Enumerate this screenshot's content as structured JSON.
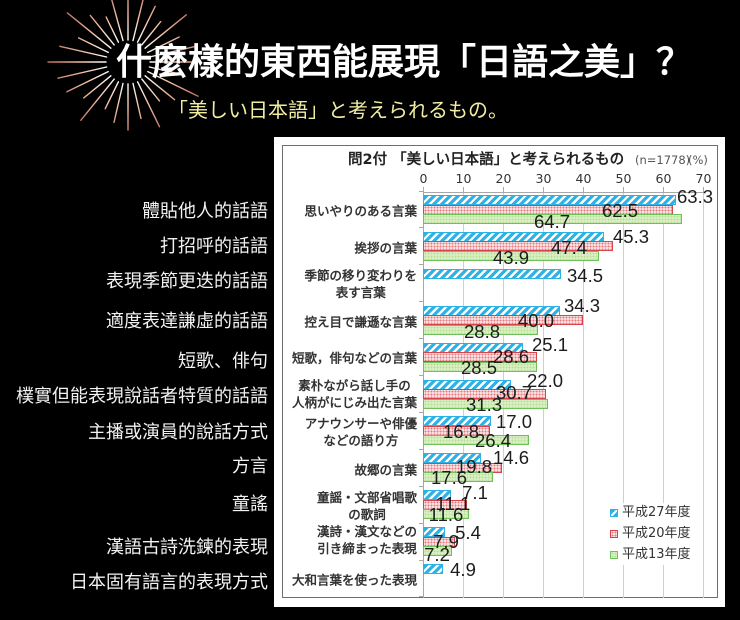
{
  "header": {
    "title": "什麼樣的東西能展現「日語之美」？",
    "subtitle": "「美しい日本語」と考えられるもの。"
  },
  "annotations": {
    "left_labels": [
      "體貼他人的話語",
      "打招呼的話語",
      "表現季節更迭的話語",
      "適度表達謙虛的話語",
      "短歌、俳句",
      "樸實但能表現說話者特質的話語",
      "主播或演員的說話方式",
      "方言",
      "童謠",
      "漢語古詩洗鍊的表現",
      "日本固有語言的表現方式"
    ]
  },
  "chart_data": {
    "type": "bar",
    "orientation": "horizontal",
    "title": "問2付 「美しい日本語」と考えられるもの",
    "sample_size_label": "(n=1778)",
    "unit_label": "(%)",
    "xlabel": "",
    "ylabel": "",
    "xlim": [
      0,
      70
    ],
    "xticks": [
      0,
      10,
      20,
      30,
      40,
      50,
      60,
      70
    ],
    "grid": true,
    "legend_position": "lower right",
    "categories": [
      "思いやりのある言葉",
      "挨拶の言葉",
      "季節の移り変わりを\n表す言葉",
      "控え目で謙遜な言葉",
      "短歌，俳句などの言葉",
      "素朴ながら話し手の\n人柄がにじみ出た言葉",
      "アナウンサーや俳優\nなどの語り方",
      "故郷の言葉",
      "童謡・文部省唱歌\nの歌詞",
      "漢詩・漢文などの\n引き締まった表現",
      "大和言葉を使った表現"
    ],
    "series": [
      {
        "name": "平成27年度",
        "color": "#2fb1e6",
        "pattern": "diagonal-stripes",
        "values": [
          63.3,
          45.3,
          34.5,
          34.3,
          25.1,
          22.0,
          17.0,
          14.6,
          7.1,
          5.4,
          4.9
        ]
      },
      {
        "name": "平成20年度",
        "color": "#d9434b",
        "pattern": "dots",
        "values": [
          62.5,
          47.4,
          null,
          40.0,
          28.6,
          30.7,
          16.8,
          19.8,
          11.1,
          7.9,
          null
        ]
      },
      {
        "name": "平成13年度",
        "color": "#6fbf5a",
        "pattern": "dots",
        "values": [
          64.7,
          43.9,
          null,
          28.8,
          28.5,
          31.3,
          26.4,
          17.6,
          11.6,
          7.2,
          null
        ]
      }
    ]
  }
}
